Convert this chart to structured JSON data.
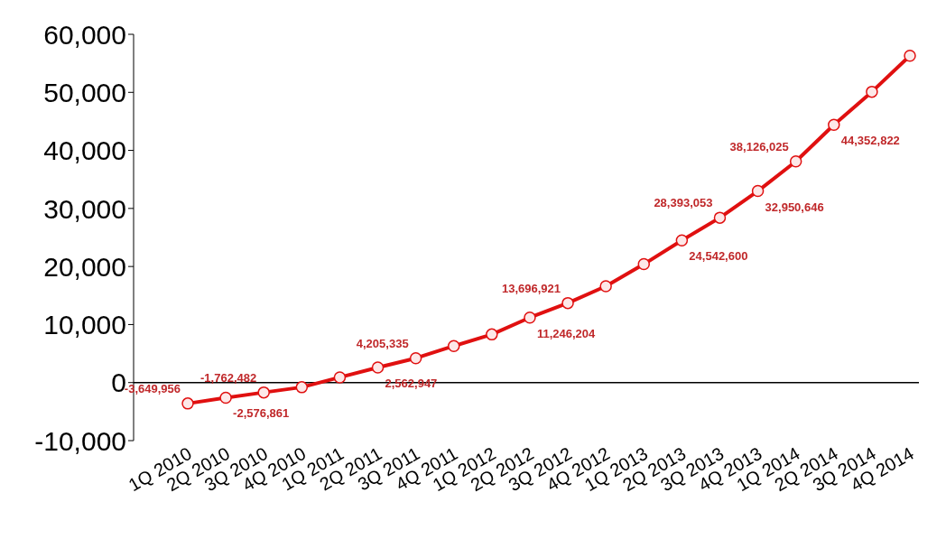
{
  "chart_data": {
    "type": "line",
    "categories": [
      "1Q 2010",
      "2Q 2010",
      "3Q 2010",
      "4Q 2010",
      "1Q 2011",
      "2Q 2011",
      "3Q 2011",
      "4Q 2011",
      "1Q 2012",
      "2Q 2012",
      "3Q 2012",
      "4Q 2012",
      "1Q 2013",
      "2Q 2013",
      "3Q 2013",
      "4Q 2013",
      "1Q 2014",
      "2Q 2014",
      "3Q 2014",
      "4Q 2014"
    ],
    "series": [
      {
        "color": "#e01010",
        "values": [
          -3600,
          -2600,
          -1700,
          -800,
          900,
          2600,
          4200,
          6300,
          8300,
          11200,
          13700,
          16600,
          20400,
          24500,
          28400,
          33000,
          38100,
          44400,
          50100,
          56300
        ]
      }
    ],
    "annotations": [
      {
        "text": "-3,649,956",
        "x": "1Q 2010",
        "y": -3600
      },
      {
        "text": "-2,576,861",
        "x": "2Q 2010",
        "y": -2600
      },
      {
        "text": "-1,762,482",
        "x": "3Q 2010",
        "y": -1700
      },
      {
        "text": "2,562,947",
        "x": "2Q 2011",
        "y": 2600
      },
      {
        "text": "4,205,335",
        "x": "3Q 2011",
        "y": 4200
      },
      {
        "text": "11,246,204",
        "x": "2Q 2012",
        "y": 11200
      },
      {
        "text": "13,696,921",
        "x": "3Q 2012",
        "y": 13700
      },
      {
        "text": "24,542,600",
        "x": "2Q 2013",
        "y": 24500
      },
      {
        "text": "28,393,053",
        "x": "3Q 2013",
        "y": 28400
      },
      {
        "text": "32,950,646",
        "x": "4Q 2013",
        "y": 33000
      },
      {
        "text": "38,126,025",
        "x": "1Q 2014",
        "y": 38100
      },
      {
        "text": "44,352,822",
        "x": "2Q 2014",
        "y": 44400
      }
    ],
    "ylim": [
      -10000,
      60000
    ],
    "yticks": [
      {
        "value": -10000,
        "label": "-10,000"
      },
      0,
      {
        "value": 10000,
        "label": "10,000"
      },
      {
        "value": 20000,
        "label": "20,000"
      },
      {
        "value": 30000,
        "label": "30,000"
      },
      {
        "value": 40000,
        "label": "40,000"
      },
      {
        "value": 50000,
        "label": "50,000"
      },
      {
        "value": 60000,
        "label": "60,000"
      }
    ],
    "marker": "circle",
    "line_style": "solid"
  }
}
